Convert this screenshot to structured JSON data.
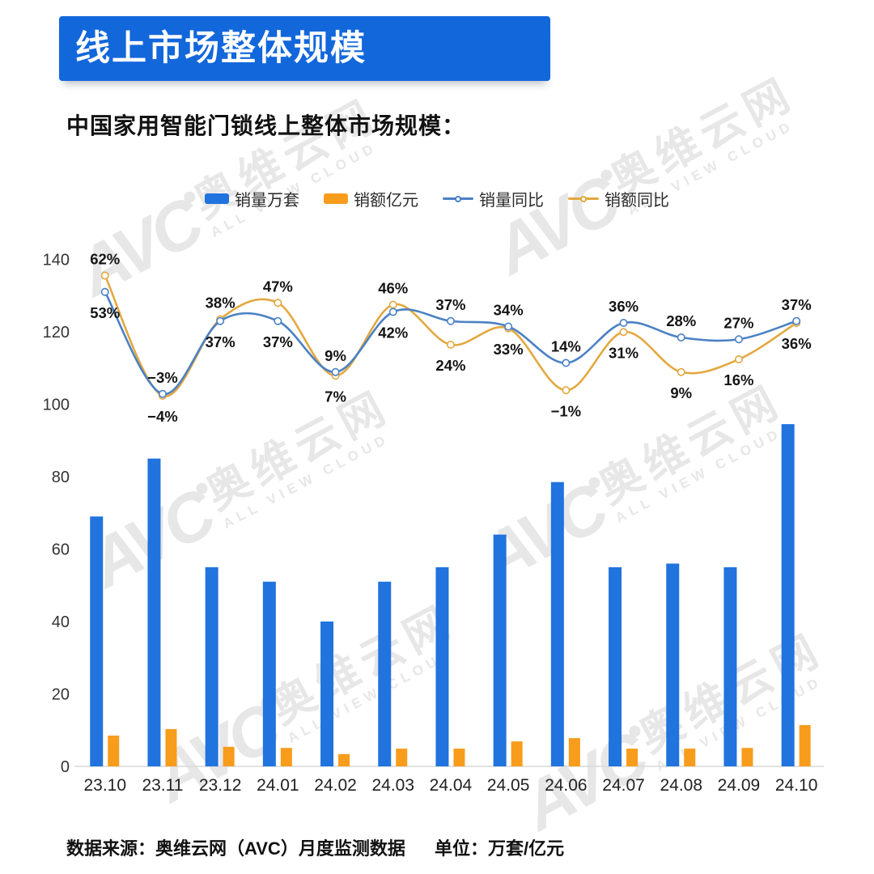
{
  "header": {
    "title": "线上市场整体规模",
    "subtitle": "中国家用智能门锁线上整体市场规模："
  },
  "watermark": {
    "logo": "AVC",
    "brand": "奥维云网",
    "sub": "ALL VIEW CLOUD"
  },
  "footer": {
    "source": "数据来源：奥维云网（AVC）月度监测数据",
    "unit": "单位：万套/亿元"
  },
  "colors": {
    "banner": "#1267db",
    "bar_volume": "#2173de",
    "bar_revenue": "#f89c1c",
    "line_volume": "#4b81c3",
    "line_revenue": "#e3a83f",
    "axis_text": "#333333",
    "label_text": "#141414",
    "axis_line": "#d9d9d9"
  },
  "chart_data": {
    "type": "bar+line combo",
    "title": "中国家用智能门锁线上整体市场规模",
    "categories": [
      "23.10",
      "23.11",
      "23.12",
      "24.01",
      "24.02",
      "24.03",
      "24.04",
      "24.05",
      "24.06",
      "24.07",
      "24.08",
      "24.09",
      "24.10"
    ],
    "series": [
      {
        "key": "sales-volume",
        "name": "销量万套",
        "type": "bar",
        "unit": "万套",
        "color_key": "bar_volume",
        "values": [
          69,
          85,
          55,
          51,
          40,
          51,
          55,
          64,
          78.5,
          55,
          56,
          55,
          94.5
        ]
      },
      {
        "key": "sales-revenue",
        "name": "销额亿元",
        "type": "bar",
        "unit": "亿元",
        "color_key": "bar_revenue",
        "values": [
          8.5,
          10.3,
          5.4,
          5.1,
          3.4,
          4.9,
          4.9,
          6.9,
          7.8,
          4.9,
          4.9,
          5.1,
          11.4
        ]
      },
      {
        "key": "volume-yoy",
        "name": "销量同比",
        "type": "line",
        "unit": "%",
        "color_key": "line_volume",
        "values": [
          53,
          -3,
          37,
          37,
          9,
          42,
          37,
          34,
          14,
          36,
          28,
          27,
          37
        ],
        "label_pos": [
          "below",
          "above",
          "below",
          "below",
          "above",
          "below",
          "above",
          "above",
          "above",
          "above",
          "above",
          "above",
          "above"
        ]
      },
      {
        "key": "revenue-yoy",
        "name": "销额同比",
        "type": "line",
        "unit": "%",
        "color_key": "line_revenue",
        "values": [
          62,
          -4,
          38,
          47,
          7,
          46,
          24,
          33,
          -1,
          31,
          9,
          16,
          36
        ],
        "label_pos": [
          "above",
          "below",
          "above",
          "above",
          "below",
          "above",
          "below",
          "below",
          "below",
          "below",
          "below",
          "below",
          "below"
        ]
      }
    ],
    "y_axis": {
      "ticks": [
        0,
        20,
        40,
        60,
        80,
        100,
        120,
        140
      ],
      "min": 0,
      "max": 140
    },
    "grid": false,
    "legend_position": "top",
    "xlabel": "",
    "ylabel": ""
  }
}
